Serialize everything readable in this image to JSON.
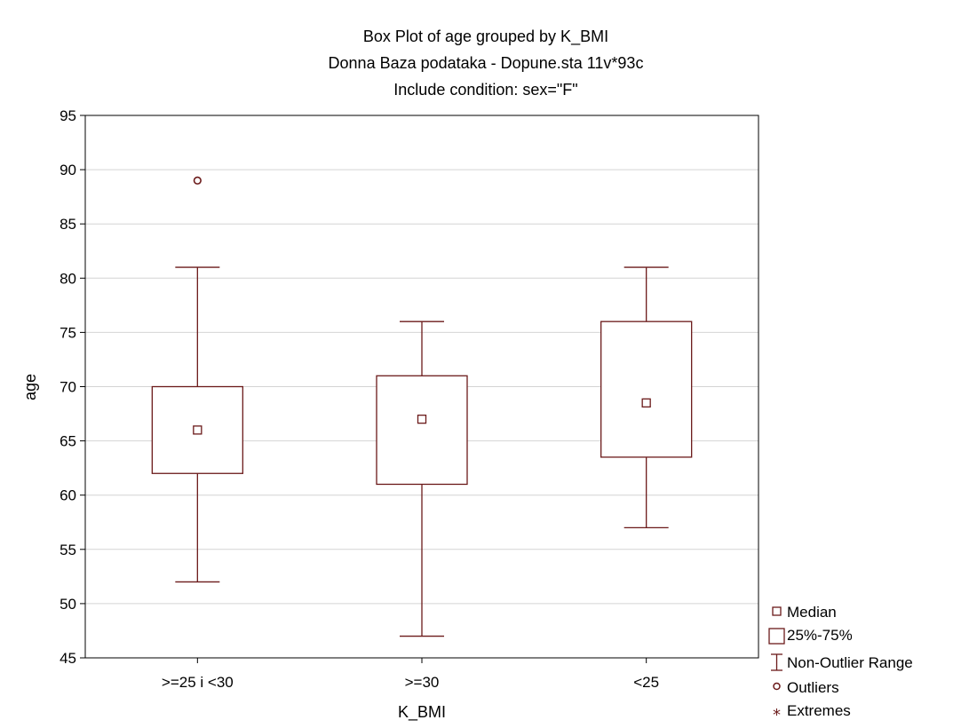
{
  "chart_data": {
    "type": "boxplot",
    "title": "Box Plot of age grouped by  K_BMI",
    "subtitle": "Donna Baza podataka - Dopune.sta 11v*93c",
    "subtitle2": "Include condition: sex=\"F\"",
    "xlabel": "K_BMI",
    "ylabel": "age",
    "ylim": [
      45,
      95
    ],
    "yticks": [
      "45",
      "50",
      "55",
      "60",
      "65",
      "70",
      "75",
      "80",
      "85",
      "90",
      "95"
    ],
    "grid": "horizontal",
    "categories": [
      ">=25 i <30",
      ">=30",
      "<25"
    ],
    "boxes": [
      {
        "category": ">=25 i <30",
        "median": 66,
        "q1": 62,
        "q3": 70,
        "whisker_low": 52,
        "whisker_high": 81,
        "outliers": [
          89
        ],
        "extremes": []
      },
      {
        "category": ">=30",
        "median": 67,
        "q1": 61,
        "q3": 71,
        "whisker_low": 47,
        "whisker_high": 76,
        "outliers": [],
        "extremes": []
      },
      {
        "category": "<25",
        "median": 68.5,
        "q1": 63.5,
        "q3": 76,
        "whisker_low": 57,
        "whisker_high": 81,
        "outliers": [],
        "extremes": []
      }
    ],
    "legend": {
      "position": "bottom-right",
      "items": [
        "Median",
        "25%-75%",
        "Non-Outlier Range",
        "Outliers",
        "Extremes"
      ]
    },
    "colors": {
      "box": "#6b1a1a",
      "grid": "#d4d4d4",
      "axis": "#000000"
    }
  }
}
